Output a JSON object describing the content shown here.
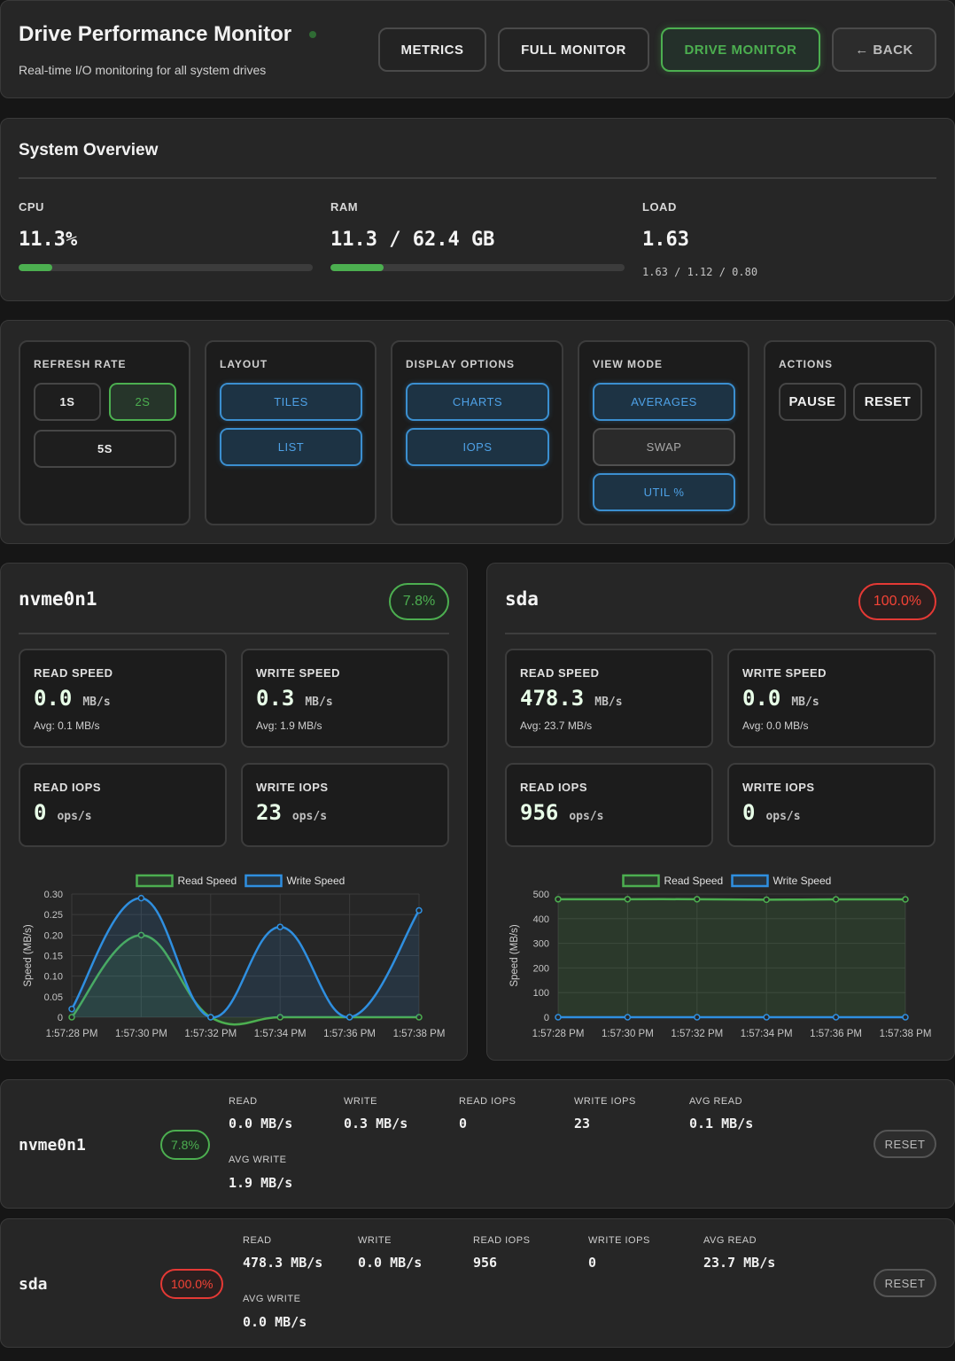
{
  "header": {
    "title": "Drive Performance Monitor",
    "subtitle": "Real-time I/O monitoring for all system drives",
    "nav": [
      {
        "label": "METRICS"
      },
      {
        "label": "FULL MONITOR"
      },
      {
        "label": "DRIVE MONITOR"
      },
      {
        "label": "← BACK"
      }
    ],
    "active_nav": "DRIVE MONITOR"
  },
  "overview": {
    "title": "System Overview",
    "cpu": {
      "label": "CPU",
      "value": "11.3%",
      "fraction": 0.113
    },
    "ram": {
      "label": "RAM",
      "value": "11.3 / 62.4 GB",
      "fraction": 0.181
    },
    "load": {
      "label": "LOAD",
      "value": "1.63",
      "detail": "1.63 / 1.12 / 0.80"
    }
  },
  "controls": {
    "refresh": {
      "label": "REFRESH RATE",
      "options": [
        "1S",
        "2S",
        "5S"
      ],
      "selected": "2S"
    },
    "layout": {
      "label": "LAYOUT",
      "options": [
        "TILES",
        "LIST"
      ]
    },
    "display": {
      "label": "DISPLAY OPTIONS",
      "options": [
        "CHARTS",
        "IOPS"
      ]
    },
    "view": {
      "label": "VIEW MODE",
      "options": [
        "AVERAGES",
        "SWAP",
        "UTIL %"
      ]
    },
    "actions": {
      "label": "ACTIONS",
      "pause": "PAUSE",
      "reset": "RESET"
    }
  },
  "drives": [
    {
      "name": "nvme0n1",
      "util": "7.8%",
      "status_color": "#4caf50",
      "read_speed": {
        "label": "READ SPEED",
        "value": "0.0",
        "unit": "MB/s",
        "avg": "Avg: 0.1 MB/s"
      },
      "write_speed": {
        "label": "WRITE SPEED",
        "value": "0.3",
        "unit": "MB/s",
        "avg": "Avg: 1.9 MB/s"
      },
      "read_iops": {
        "label": "READ IOPS",
        "value": "0",
        "unit": "ops/s"
      },
      "write_iops": {
        "label": "WRITE IOPS",
        "value": "23",
        "unit": "ops/s"
      }
    },
    {
      "name": "sda",
      "util": "100.0%",
      "status_color": "#f44336",
      "read_speed": {
        "label": "READ SPEED",
        "value": "478.3",
        "unit": "MB/s",
        "avg": "Avg: 23.7 MB/s"
      },
      "write_speed": {
        "label": "WRITE SPEED",
        "value": "0.0",
        "unit": "MB/s",
        "avg": "Avg: 0.0 MB/s"
      },
      "read_iops": {
        "label": "READ IOPS",
        "value": "956",
        "unit": "ops/s"
      },
      "write_iops": {
        "label": "WRITE IOPS",
        "value": "0",
        "unit": "ops/s"
      }
    }
  ],
  "rows": [
    {
      "name": "nvme0n1",
      "util": "7.8%",
      "labels": [
        "READ",
        "WRITE",
        "READ IOPS",
        "WRITE IOPS",
        "AVG READ",
        "AVG WRITE"
      ],
      "values": [
        "0.0 MB/s",
        "0.3 MB/s",
        "0",
        "23",
        "0.1 MB/s",
        "1.9 MB/s"
      ],
      "reset": "RESET"
    },
    {
      "name": "sda",
      "util": "100.0%",
      "labels": [
        "READ",
        "WRITE",
        "READ IOPS",
        "WRITE IOPS",
        "AVG READ",
        "AVG WRITE"
      ],
      "values": [
        "478.3 MB/s",
        "0.0 MB/s",
        "956",
        "0",
        "23.7 MB/s",
        "0.0 MB/s"
      ],
      "reset": "RESET"
    }
  ],
  "chart_data": [
    {
      "type": "line",
      "x": [
        "1:57:28 PM",
        "1:57:30 PM",
        "1:57:32 PM",
        "1:57:34 PM",
        "1:57:36 PM",
        "1:57:38 PM"
      ],
      "series": [
        {
          "name": "Read Speed",
          "values": [
            0,
            0.2,
            0,
            0,
            0,
            0
          ],
          "color": "#4caf50"
        },
        {
          "name": "Write Speed",
          "values": [
            0.02,
            0.29,
            0,
            0.22,
            0,
            0.26
          ],
          "color": "#2f8fe0"
        }
      ],
      "ylabel": "Speed (MB/s)",
      "yticks": [
        "0",
        "0.05",
        "0.10",
        "0.15",
        "0.20",
        "0.25",
        "0.30"
      ],
      "ylim": [
        0,
        0.3
      ],
      "legend": "top",
      "grid": true
    },
    {
      "type": "line",
      "x": [
        "1:57:28 PM",
        "1:57:30 PM",
        "1:57:32 PM",
        "1:57:34 PM",
        "1:57:36 PM",
        "1:57:38 PM"
      ],
      "series": [
        {
          "name": "Read Speed",
          "values": [
            479,
            479,
            479,
            477,
            478.5,
            478.3
          ],
          "color": "#4caf50"
        },
        {
          "name": "Write Speed",
          "values": [
            0,
            0,
            0,
            0,
            0,
            0
          ],
          "color": "#2f8fe0"
        }
      ],
      "ylabel": "Speed (MB/s)",
      "yticks": [
        "0",
        "100",
        "200",
        "300",
        "400",
        "500"
      ],
      "ylim": [
        0,
        500
      ],
      "legend": "top",
      "grid": true
    }
  ]
}
